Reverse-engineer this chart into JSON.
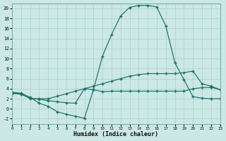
{
  "xlabel": "Humidex (Indice chaleur)",
  "background_color": "#cce8e4",
  "grid_color": "#aacfcb",
  "line_color": "#1a7068",
  "xlim": [
    0,
    23
  ],
  "ylim": [
    -3,
    21
  ],
  "xticks": [
    0,
    1,
    2,
    3,
    4,
    5,
    6,
    7,
    8,
    9,
    10,
    11,
    12,
    13,
    14,
    15,
    16,
    17,
    18,
    19,
    20,
    21,
    22,
    23
  ],
  "yticks": [
    -2,
    0,
    2,
    4,
    6,
    8,
    10,
    12,
    14,
    16,
    18,
    20
  ],
  "line1_x": [
    0,
    1,
    2,
    3,
    4,
    5,
    6,
    7,
    8,
    9,
    10,
    11,
    12,
    13,
    14,
    15,
    16,
    17,
    18,
    19,
    20,
    21,
    22,
    23
  ],
  "line1_y": [
    3.3,
    3.1,
    2.3,
    1.1,
    0.5,
    -0.6,
    -1.1,
    -1.5,
    -1.9,
    3.8,
    10.5,
    14.8,
    18.5,
    20.2,
    20.6,
    20.6,
    20.3,
    16.5,
    9.2,
    5.8,
    2.4,
    2.1,
    2.0,
    2.0
  ],
  "line2_x": [
    0,
    1,
    2,
    3,
    4,
    5,
    6,
    7,
    8,
    9,
    10,
    11,
    12,
    13,
    14,
    15,
    16,
    17,
    18,
    19,
    20,
    21,
    22,
    23
  ],
  "line2_y": [
    3.2,
    2.9,
    2.1,
    1.9,
    1.6,
    1.4,
    1.2,
    1.1,
    4.0,
    3.8,
    3.4,
    3.5,
    3.5,
    3.5,
    3.5,
    3.5,
    3.5,
    3.5,
    3.5,
    3.5,
    4.0,
    4.2,
    4.3,
    3.8
  ],
  "line3_x": [
    0,
    1,
    2,
    3,
    4,
    5,
    6,
    7,
    8,
    9,
    10,
    11,
    12,
    13,
    14,
    15,
    16,
    17,
    18,
    19,
    20,
    21,
    22,
    23
  ],
  "line3_y": [
    3.0,
    3.0,
    2.0,
    2.0,
    2.0,
    2.5,
    3.0,
    3.5,
    4.0,
    4.5,
    5.0,
    5.5,
    6.0,
    6.5,
    6.8,
    7.0,
    7.0,
    7.0,
    7.0,
    7.2,
    7.5,
    5.0,
    4.5,
    3.8
  ]
}
